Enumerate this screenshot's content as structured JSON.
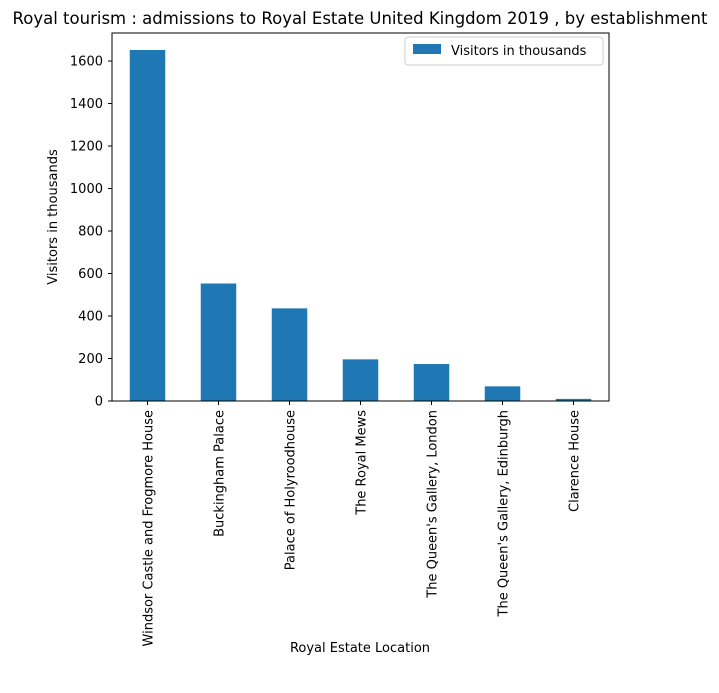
{
  "chart_data": {
    "type": "bar",
    "title": "Royal tourism : admissions to Royal Estate United Kingdom 2019 , by establishment",
    "xlabel": "Royal Estate Location",
    "ylabel": "Visitors in thousands",
    "categories": [
      "Windsor Castle and Frogmore House",
      "Buckingham Palace",
      "Palace of Holyroodhouse",
      "The Royal Mews",
      "The Queen's Gallery, London",
      "The Queen's Gallery, Edinburgh",
      "Clarence House"
    ],
    "series": [
      {
        "name": "Visitors in thousands",
        "values": [
          1652,
          553,
          436,
          196,
          174,
          69,
          10
        ],
        "color": "#1f77b4"
      }
    ],
    "ylim": [
      0,
      1732
    ],
    "yticks": [
      0,
      200,
      400,
      600,
      800,
      1000,
      1200,
      1400,
      1600
    ],
    "grid": false,
    "legend": "top-right"
  }
}
